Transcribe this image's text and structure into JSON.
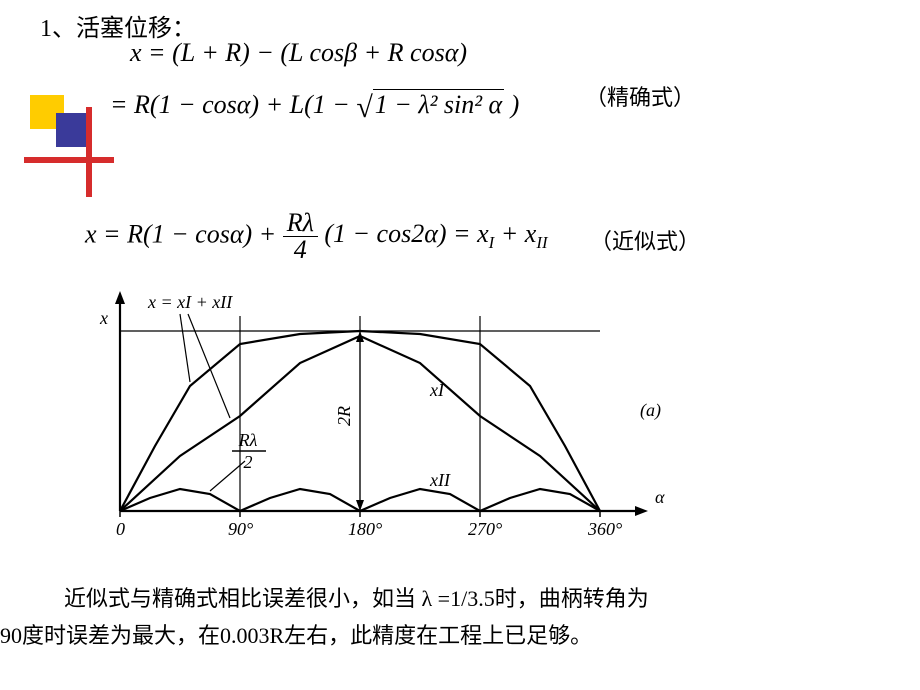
{
  "heading": "1、活塞位移：",
  "eq1_line1": "x = (L + R) − (L cosβ + R cosα)",
  "eq1_line2_pre": "= R(1 − cosα) + L(1 − ",
  "eq1_sqrt_arg": "1 − λ² sin² α",
  "eq1_line2_post": " )",
  "note_exact": "（精确式）",
  "eq2_pre": "x = R(1 − cosα) + ",
  "eq2_frac_n": "Rλ",
  "eq2_frac_d": "4",
  "eq2_post": " (1 − cos2α) = xI + xII",
  "note_approx": "（近似式）",
  "chart": {
    "axes_color": "#000",
    "curve_weight": 2.2,
    "thin_weight": 1.2,
    "xticks": [
      "0",
      "90°",
      "180°",
      "270°",
      "360°"
    ],
    "xtick_pos": [
      60,
      180,
      300,
      420,
      540
    ],
    "ylabel": "x",
    "xlabel": "α",
    "label_top": "x = xI + xII",
    "label_Rl2_n": "Rλ",
    "label_Rl2_d": "2",
    "label_2R": "2R",
    "label_x1": "xI",
    "label_x2": "xII",
    "panel_label": "(a)",
    "x1_curve": [
      [
        60,
        225
      ],
      [
        120,
        170
      ],
      [
        180,
        130
      ],
      [
        240,
        77
      ],
      [
        300,
        50
      ],
      [
        360,
        77
      ],
      [
        420,
        130
      ],
      [
        480,
        170
      ],
      [
        540,
        225
      ]
    ],
    "xsum_curve": [
      [
        60,
        225
      ],
      [
        95,
        160
      ],
      [
        130,
        100
      ],
      [
        180,
        58
      ],
      [
        240,
        48
      ],
      [
        300,
        45
      ],
      [
        360,
        48
      ],
      [
        420,
        58
      ],
      [
        470,
        100
      ],
      [
        505,
        160
      ],
      [
        540,
        225
      ]
    ],
    "x2_curve": [
      [
        60,
        225
      ],
      [
        90,
        212
      ],
      [
        120,
        203
      ],
      [
        150,
        208
      ],
      [
        180,
        225
      ],
      [
        210,
        212
      ],
      [
        240,
        203
      ],
      [
        270,
        208
      ],
      [
        300,
        225
      ],
      [
        330,
        212
      ],
      [
        360,
        203
      ],
      [
        390,
        208
      ],
      [
        420,
        225
      ],
      [
        450,
        212
      ],
      [
        480,
        203
      ],
      [
        510,
        208
      ],
      [
        540,
        225
      ]
    ],
    "vlines": [
      180,
      300,
      420
    ],
    "y_top": 30,
    "y_base": 225
  },
  "bottom_line1": "近似式与精确式相比误差很小，如当 λ =1/3.5时，曲柄转角为",
  "bottom_line2": "90度时误差为最大，在0.003R左右，此精度在工程上已足够。"
}
